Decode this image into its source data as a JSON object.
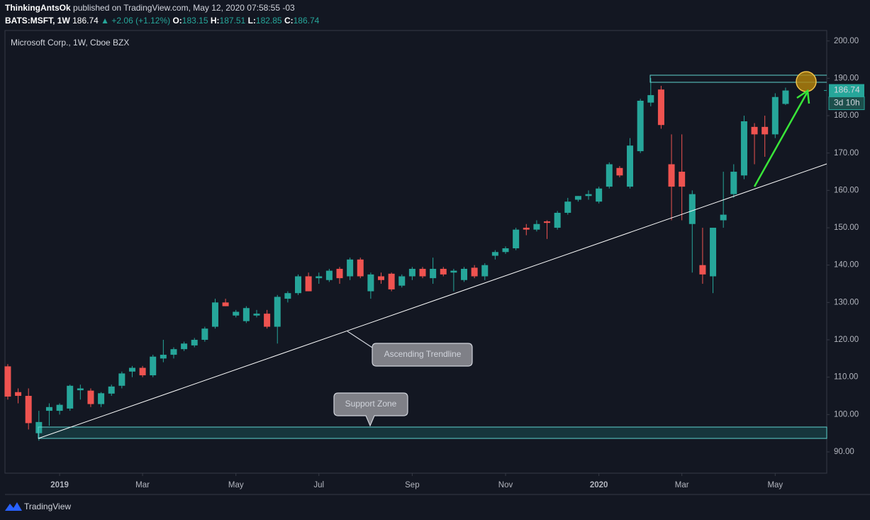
{
  "header": {
    "author": "ThinkingAntsOk",
    "published": "published on TradingView.com, May 12, 2020 07:58:55 -03",
    "symbol": "BATS:MSFT, 1W",
    "price": "186.74",
    "change": "▲ +2.06 (+1.12%)",
    "ohlc": [
      {
        "label": "O:",
        "value": "183.15"
      },
      {
        "label": "H:",
        "value": "187.51"
      },
      {
        "label": "L:",
        "value": "182.85"
      },
      {
        "label": "C:",
        "value": "186.74"
      }
    ]
  },
  "chart_data": {
    "type": "candlestick",
    "title": "Microsoft Corp., 1W, Cboe BZX",
    "up_color": "#26a69a",
    "down_color": "#ef5350",
    "open": [
      112.9,
      106,
      105,
      95,
      101,
      101,
      101.6,
      106.5,
      106.4,
      102.8,
      105.6,
      107.7,
      111.5,
      112.5,
      110.5,
      115,
      116,
      117.5,
      118.5,
      120,
      123.5,
      130,
      126.5,
      125,
      126.5,
      127,
      123.5,
      131,
      132.5,
      137,
      136.5,
      136,
      139,
      137,
      141.5,
      133,
      137,
      137.7,
      134.5,
      137,
      139,
      136.5,
      139,
      138,
      136,
      139.3,
      137,
      142.5,
      143.5,
      144.5,
      150,
      149.5,
      151.7,
      150,
      154,
      157.5,
      158.5,
      157,
      161,
      166,
      161,
      170.5,
      183.5,
      187,
      167,
      165,
      151,
      140,
      137,
      152,
      159,
      164,
      177,
      177,
      175,
      183.15
    ],
    "high": [
      113.5,
      107,
      107,
      101,
      103,
      103,
      108,
      108,
      107,
      106,
      108,
      111.5,
      113,
      113,
      116,
      120,
      118,
      119.5,
      120.5,
      123.5,
      131,
      131,
      128,
      129,
      128,
      128,
      132,
      133,
      137.5,
      138,
      138,
      139,
      139.5,
      142,
      142,
      138,
      138,
      138,
      137.5,
      139.5,
      139.5,
      142,
      139.5,
      139,
      139.5,
      140,
      140.5,
      144,
      145,
      150,
      151,
      152,
      152,
      154.5,
      158,
      158.5,
      160,
      161,
      167.5,
      166.5,
      174,
      184.5,
      190.1,
      188,
      175,
      175,
      160,
      150,
      150,
      165,
      167,
      180,
      178,
      180,
      186,
      187.51
    ],
    "low": [
      104,
      103,
      96,
      93,
      97,
      100,
      101,
      104,
      102,
      102,
      105,
      107,
      110,
      110,
      110,
      114,
      115,
      117,
      118,
      119.5,
      123,
      129,
      126,
      124.5,
      126,
      123,
      119,
      130,
      132,
      133,
      135,
      135.5,
      135,
      136,
      136.5,
      131,
      135,
      133,
      134,
      136,
      136.5,
      135,
      137,
      133,
      135.5,
      136.5,
      136,
      141.5,
      143,
      144,
      148,
      149,
      147,
      149.5,
      153.5,
      157,
      157.5,
      156.5,
      160.5,
      163.5,
      160.5,
      170,
      182.5,
      176.5,
      152,
      152,
      138,
      135,
      132.5,
      150,
      158,
      163,
      167,
      169,
      174,
      182.85
    ],
    "close": [
      104.8,
      105,
      97.7,
      98,
      102,
      102.6,
      107.7,
      107,
      102.8,
      105.7,
      107.5,
      111,
      112.5,
      110.5,
      115.5,
      116,
      117.5,
      119,
      120,
      123,
      130,
      129,
      127.5,
      128.5,
      127,
      123.5,
      131.5,
      132.5,
      137,
      133,
      137,
      138.5,
      136.5,
      141.5,
      137,
      137.5,
      136,
      133.5,
      137,
      139,
      137,
      139,
      137.5,
      138.5,
      139,
      137,
      140,
      143.5,
      144.5,
      149.5,
      149.5,
      151,
      151.3,
      154,
      157,
      158.5,
      159,
      160.5,
      167,
      164,
      172,
      184,
      185.5,
      177.5,
      161,
      161,
      159,
      137.5,
      150,
      153.5,
      165,
      178.5,
      175,
      175,
      185,
      186.74
    ],
    "last_price": 186.74,
    "countdown": "3d 10h",
    "xlim": [
      -0.27,
      78.97
    ],
    "xticks": [
      {
        "value": 5,
        "label": "2019"
      },
      {
        "value": 13,
        "label": "Mar"
      },
      {
        "value": 22,
        "label": "May"
      },
      {
        "value": 30,
        "label": "Jul"
      },
      {
        "value": 39,
        "label": "Sep"
      },
      {
        "value": 48,
        "label": "Nov"
      },
      {
        "value": 57,
        "label": "2020"
      },
      {
        "value": 65,
        "label": "Mar"
      },
      {
        "value": 74,
        "label": "May"
      }
    ],
    "ylim": [
      84.3,
      202.8
    ],
    "yticks": [
      {
        "value": 90,
        "label": "90.00"
      },
      {
        "value": 100,
        "label": "100.00"
      },
      {
        "value": 110,
        "label": "110.00"
      },
      {
        "value": 120,
        "label": "120.00"
      },
      {
        "value": 130,
        "label": "130.00"
      },
      {
        "value": 140,
        "label": "140.00"
      },
      {
        "value": 150,
        "label": "150.00"
      },
      {
        "value": 160,
        "label": "160.00"
      },
      {
        "value": 170,
        "label": "170.00"
      },
      {
        "value": 180,
        "label": "180.00"
      },
      {
        "value": 190,
        "label": "190.00"
      },
      {
        "value": 200,
        "label": "200.00"
      }
    ],
    "annotations": [
      "Ascending Trendline",
      "Support Zone"
    ]
  },
  "footer": {
    "brand": "TradingView"
  }
}
